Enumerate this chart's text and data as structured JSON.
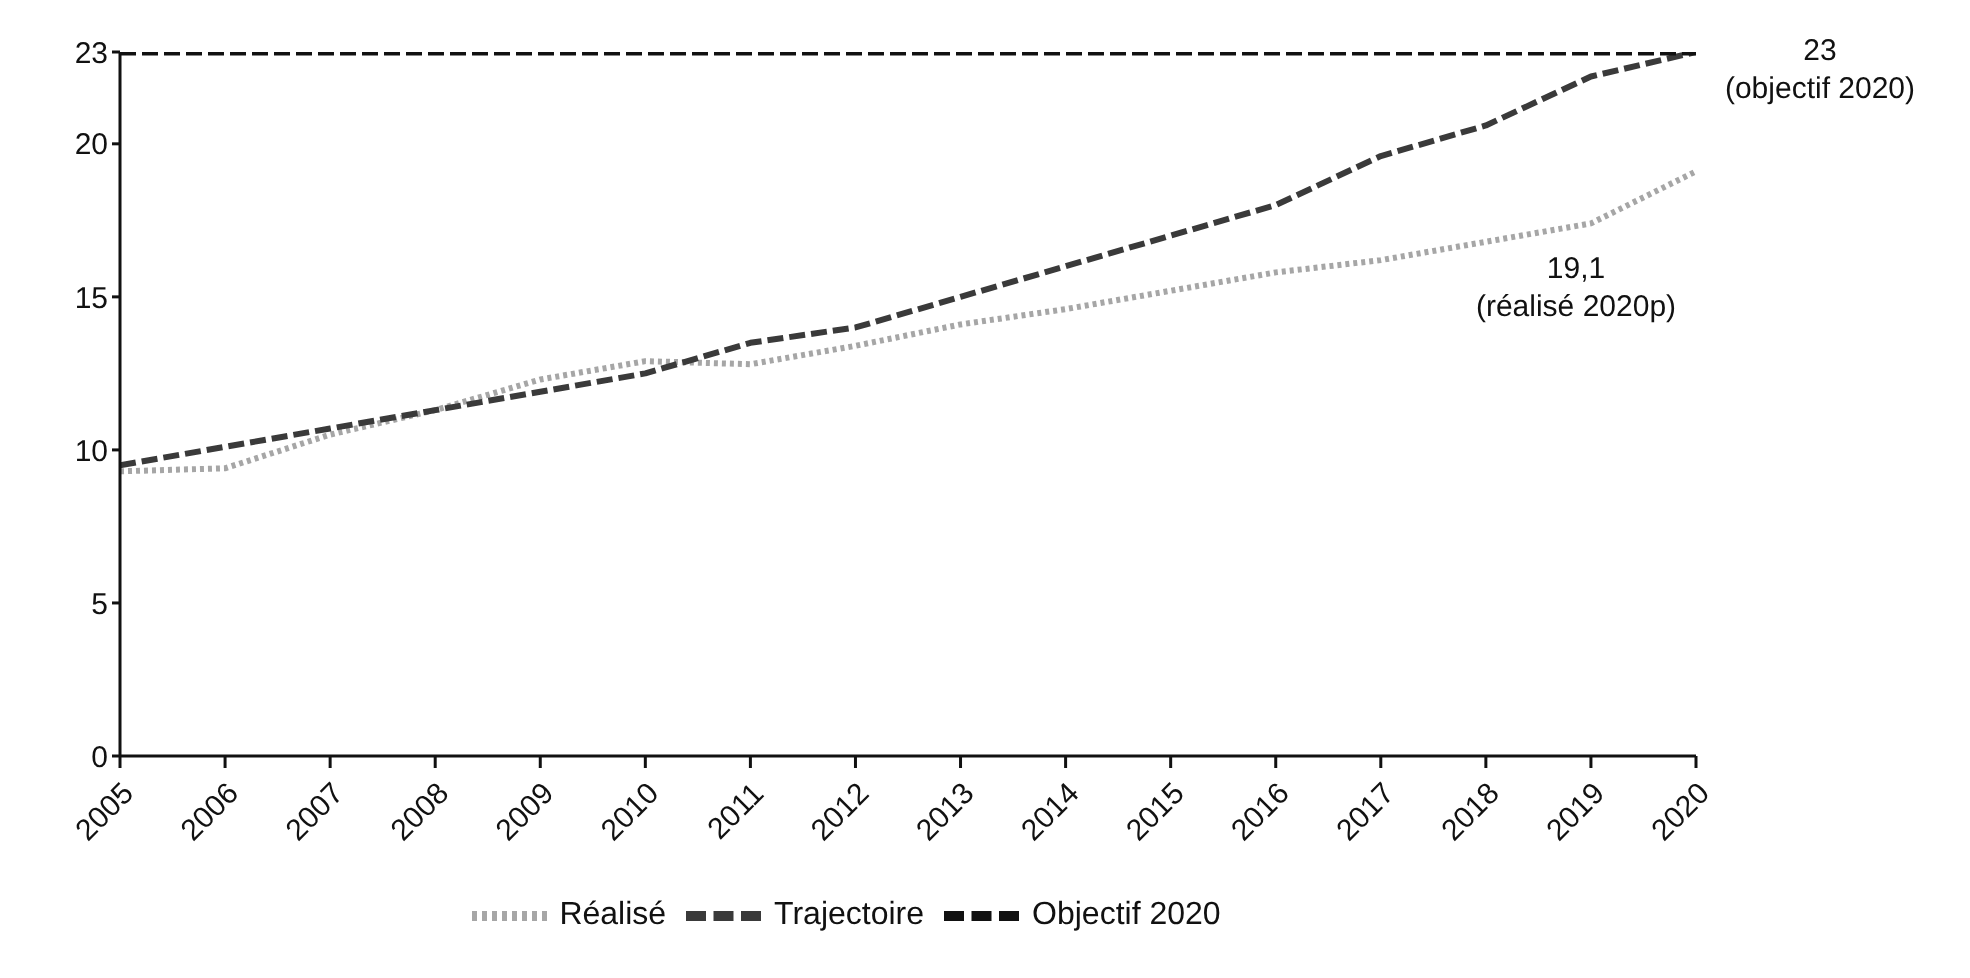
{
  "chart_data": {
    "type": "line",
    "x": [
      2005,
      2006,
      2007,
      2008,
      2009,
      2010,
      2011,
      2012,
      2013,
      2014,
      2015,
      2016,
      2017,
      2018,
      2019,
      2020
    ],
    "series": [
      {
        "name": "Réalisé",
        "color": "#a6a6a6",
        "line_style": "dotted",
        "values": [
          9.3,
          9.4,
          10.5,
          11.3,
          12.3,
          12.9,
          12.8,
          13.4,
          14.1,
          14.6,
          15.2,
          15.8,
          16.2,
          16.8,
          17.4,
          19.1
        ]
      },
      {
        "name": "Trajectoire",
        "color": "#3a3a3a",
        "line_style": "dashed",
        "values": [
          9.5,
          10.1,
          10.7,
          11.3,
          11.9,
          12.5,
          13.5,
          14.0,
          15.0,
          16.0,
          17.0,
          18.0,
          19.6,
          20.6,
          22.2,
          23
        ]
      },
      {
        "name": "Objectif 2020",
        "color": "#111111",
        "line_style": "dashed",
        "values": [
          23,
          23,
          23,
          23,
          23,
          23,
          23,
          23,
          23,
          23,
          23,
          23,
          23,
          23,
          23,
          23
        ]
      }
    ],
    "xlim": [
      2005,
      2020
    ],
    "xticks": [
      2005,
      2006,
      2007,
      2008,
      2009,
      2010,
      2011,
      2012,
      2013,
      2014,
      2015,
      2016,
      2017,
      2018,
      2019,
      2020
    ],
    "ylim": [
      0,
      23
    ],
    "yticks": [
      0,
      5,
      10,
      15,
      20,
      23
    ],
    "grid": false,
    "legend": "bottom",
    "marker": "none",
    "annotations": [
      {
        "text": "23\n(objectif 2020)",
        "x": 2020,
        "y": 23
      },
      "19,1\n(réalisé 2020p)"
    ]
  }
}
